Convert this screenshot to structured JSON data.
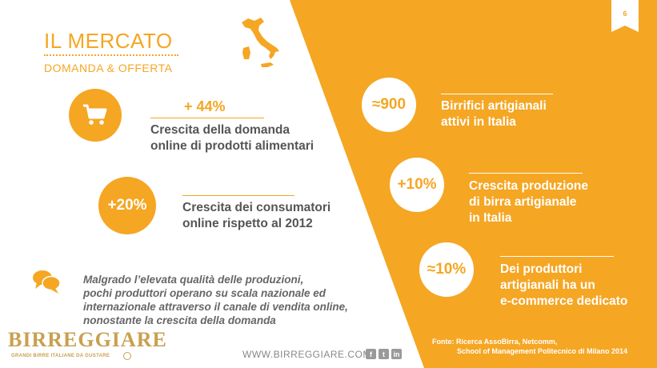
{
  "page_number": "6",
  "header": {
    "title": "IL MERCATO",
    "subtitle": "DOMANDA & OFFERTA"
  },
  "left_stats": [
    {
      "icon": "shopping-cart-icon",
      "value": "+ 44%",
      "line1": "Crescita della domanda",
      "line2": "online di prodotti alimentari"
    },
    {
      "value": "+20%",
      "line1": "Crescita dei consumatori",
      "line2": "online rispetto al 2012"
    }
  ],
  "right_stats": [
    {
      "value": "≈900",
      "line1": "Birrifici artigianali",
      "line2": "attivi in Italia"
    },
    {
      "value": "+10%",
      "line1": "Crescita produzione",
      "line2": "di birra artigianale",
      "line3": "in Italia"
    },
    {
      "value": "≈10%",
      "line1": "Dei produttori",
      "line2": "artigianali ha un",
      "line3": "e-commerce dedicato"
    }
  ],
  "note": {
    "icon": "speech-bubbles-icon",
    "line1": "Malgrado l’elevata qualità delle produzioni,",
    "line2": "pochi produttori operano su scala nazionale ed",
    "line3": "internazionale attraverso il canale di vendita online,",
    "line4": "nonostante la crescita della domanda"
  },
  "source": {
    "line1": "Fonte: Ricerca AssoBirra, Netcomm,",
    "line2": "School of Management Politecnico di Milano 2014"
  },
  "footer": {
    "website": "WWW.BIRREGGIARE.COM",
    "social": [
      "f",
      "t",
      "in"
    ],
    "logo_name": "BIRREGGIARE",
    "logo_tagline": "GRANDI BIRRE ITALIANE DA GUSTARE"
  },
  "colors": {
    "accent": "#f5a623",
    "text_grey": "#555555"
  }
}
